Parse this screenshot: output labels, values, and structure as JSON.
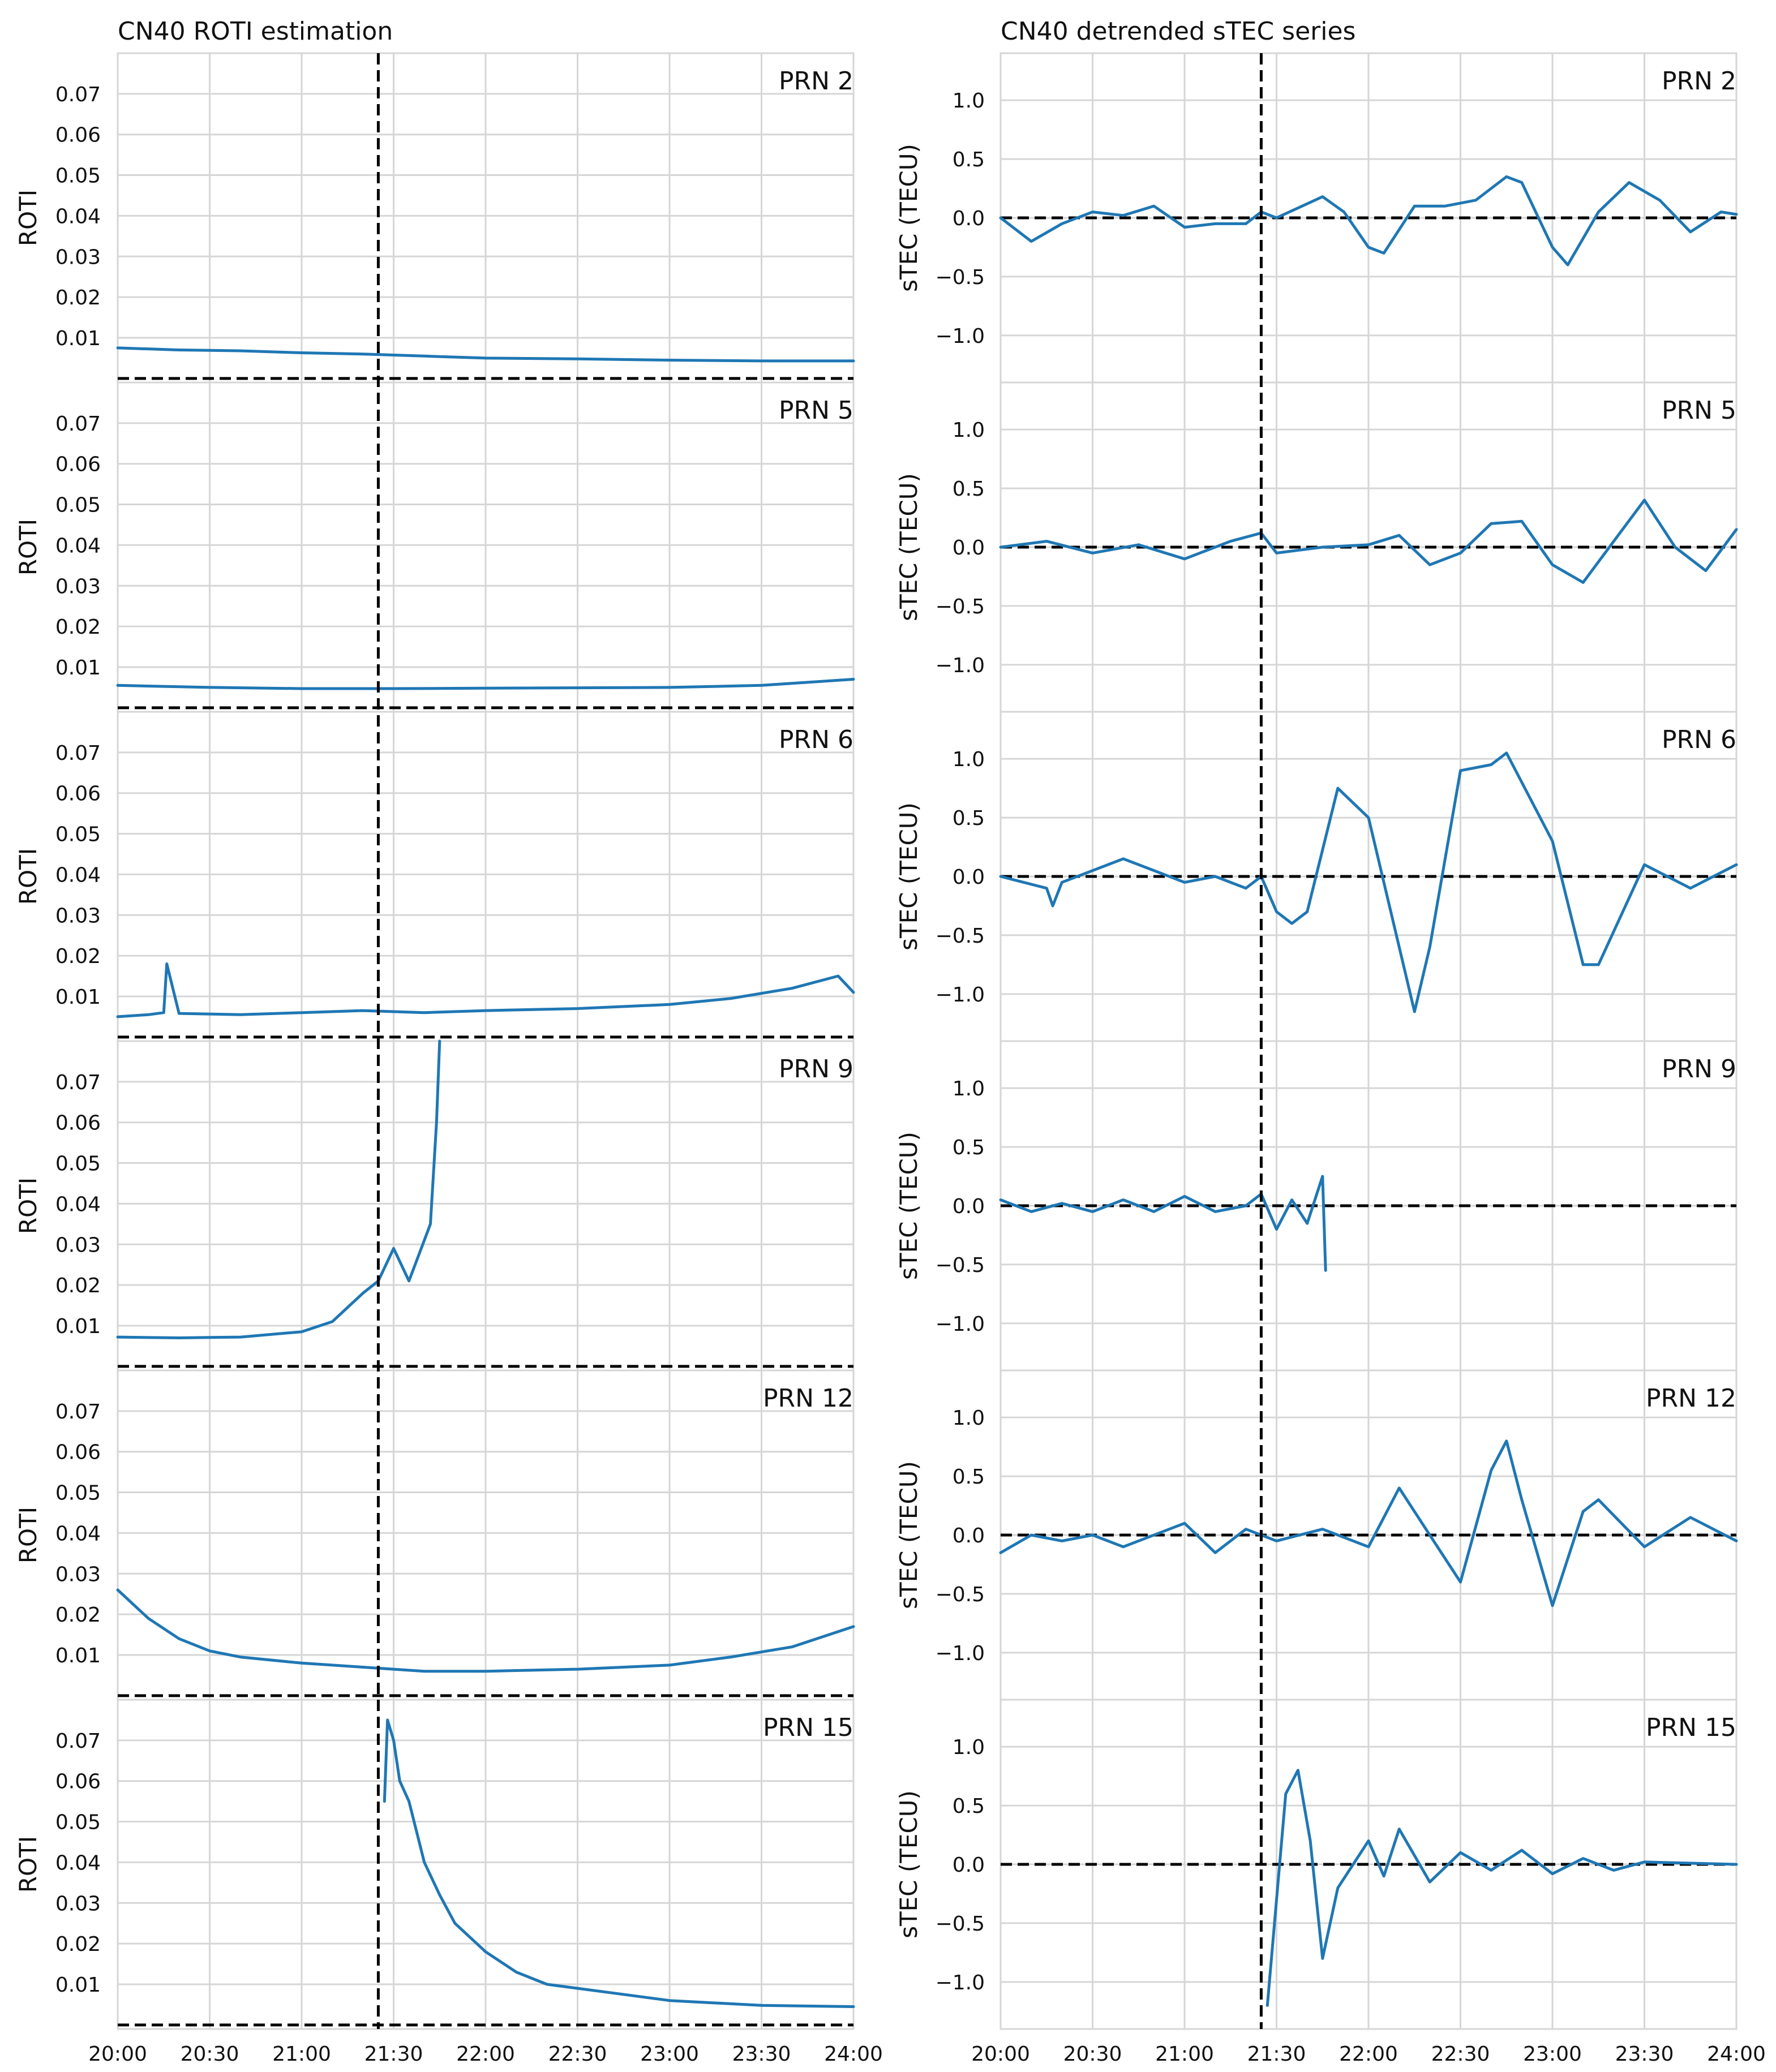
{
  "colors": {
    "series": "#1f77b4",
    "reference": "#000000",
    "grid": "#d6d6d6"
  },
  "chart_data": [
    {
      "type": "line",
      "title": "CN40 ROTI estimation",
      "ylabel": "ROTI",
      "ylim": [
        -0.001,
        0.08
      ],
      "yticks": [
        0.01,
        0.02,
        0.03,
        0.04,
        0.05,
        0.06,
        0.07
      ],
      "ytick_labels": [
        "0.01",
        "0.02",
        "0.03",
        "0.04",
        "0.05",
        "0.06",
        "0.07"
      ],
      "x_range": [
        "20:00",
        "24:00"
      ],
      "xtick_labels": [
        "20:00",
        "20:30",
        "21:00",
        "21:30",
        "22:00",
        "22:30",
        "23:00",
        "23:30",
        "24:00"
      ],
      "reference_time": "21:25",
      "reference_level": 0.0,
      "grid": true,
      "panels": [
        {
          "label": "PRN 2",
          "t": [
            "20:00",
            "20:20",
            "20:40",
            "21:00",
            "21:20",
            "21:40",
            "22:00",
            "22:30",
            "23:00",
            "23:30",
            "24:00"
          ],
          "y": [
            0.0075,
            0.007,
            0.0068,
            0.0063,
            0.006,
            0.0055,
            0.005,
            0.0048,
            0.0045,
            0.0043,
            0.0043
          ]
        },
        {
          "label": "PRN 5",
          "t": [
            "20:00",
            "20:30",
            "21:00",
            "21:30",
            "22:00",
            "22:30",
            "23:00",
            "23:30",
            "24:00"
          ],
          "y": [
            0.0055,
            0.005,
            0.0047,
            0.0047,
            0.0048,
            0.0049,
            0.005,
            0.0055,
            0.007
          ]
        },
        {
          "label": "PRN 6",
          "t": [
            "20:00",
            "20:10",
            "20:15",
            "20:16",
            "20:20",
            "20:40",
            "21:00",
            "21:20",
            "21:40",
            "22:00",
            "22:30",
            "23:00",
            "23:20",
            "23:40",
            "23:55",
            "24:00"
          ],
          "y": [
            0.005,
            0.0055,
            0.006,
            0.018,
            0.0058,
            0.0055,
            0.006,
            0.0065,
            0.006,
            0.0065,
            0.007,
            0.008,
            0.0095,
            0.012,
            0.015,
            0.011
          ]
        },
        {
          "label": "PRN 9",
          "t": [
            "20:00",
            "20:20",
            "20:40",
            "21:00",
            "21:10",
            "21:15",
            "21:20",
            "21:25",
            "21:30",
            "21:35",
            "21:40",
            "21:42",
            "21:44",
            "21:45"
          ],
          "y": [
            0.0072,
            0.007,
            0.0072,
            0.0085,
            0.011,
            0.0145,
            0.018,
            0.021,
            0.029,
            0.021,
            0.031,
            0.035,
            0.06,
            0.08
          ]
        },
        {
          "label": "PRN 12",
          "t": [
            "20:00",
            "20:10",
            "20:20",
            "20:30",
            "20:40",
            "21:00",
            "21:20",
            "21:40",
            "22:00",
            "22:30",
            "23:00",
            "23:20",
            "23:40",
            "24:00"
          ],
          "y": [
            0.026,
            0.019,
            0.014,
            0.011,
            0.0095,
            0.008,
            0.007,
            0.006,
            0.006,
            0.0065,
            0.0075,
            0.0095,
            0.012,
            0.017
          ]
        },
        {
          "label": "PRN 15",
          "t": [
            "21:27",
            "21:28",
            "21:30",
            "21:32",
            "21:35",
            "21:40",
            "21:45",
            "21:50",
            "22:00",
            "22:10",
            "22:20",
            "22:40",
            "23:00",
            "23:30",
            "24:00"
          ],
          "y": [
            0.055,
            0.075,
            0.07,
            0.06,
            0.055,
            0.04,
            0.032,
            0.025,
            0.018,
            0.013,
            0.01,
            0.008,
            0.006,
            0.0048,
            0.0045
          ]
        }
      ]
    },
    {
      "type": "line",
      "title": "CN40 detrended sTEC series",
      "ylabel": "sTEC (TECU)",
      "ylim": [
        -1.4,
        1.4
      ],
      "yticks": [
        -1.0,
        -0.5,
        0.0,
        0.5,
        1.0
      ],
      "ytick_labels": [
        "−1.0",
        "−0.5",
        "0.0",
        "0.5",
        "1.0"
      ],
      "x_range": [
        "20:00",
        "24:00"
      ],
      "xtick_labels": [
        "20:00",
        "20:30",
        "21:00",
        "21:30",
        "22:00",
        "22:30",
        "23:00",
        "23:30",
        "24:00"
      ],
      "reference_time": "21:25",
      "reference_level": 0.0,
      "grid": true,
      "panels": [
        {
          "label": "PRN 2",
          "t": [
            "20:00",
            "20:10",
            "20:20",
            "20:30",
            "20:40",
            "20:50",
            "21:00",
            "21:10",
            "21:20",
            "21:25",
            "21:30",
            "21:45",
            "21:52",
            "22:00",
            "22:05",
            "22:15",
            "22:25",
            "22:35",
            "22:45",
            "22:50",
            "23:00",
            "23:05",
            "23:15",
            "23:25",
            "23:35",
            "23:45",
            "23:55",
            "24:00"
          ],
          "y": [
            0.0,
            -0.2,
            -0.05,
            0.05,
            0.02,
            0.1,
            -0.08,
            -0.05,
            -0.05,
            0.05,
            0.0,
            0.18,
            0.05,
            -0.25,
            -0.3,
            0.1,
            0.1,
            0.15,
            0.35,
            0.3,
            -0.25,
            -0.4,
            0.05,
            0.3,
            0.15,
            -0.12,
            0.05,
            0.03
          ]
        },
        {
          "label": "PRN 5",
          "t": [
            "20:00",
            "20:15",
            "20:30",
            "20:45",
            "21:00",
            "21:15",
            "21:25",
            "21:30",
            "21:45",
            "22:00",
            "22:10",
            "22:20",
            "22:30",
            "22:40",
            "22:50",
            "23:00",
            "23:10",
            "23:20",
            "23:30",
            "23:40",
            "23:50",
            "24:00"
          ],
          "y": [
            0.0,
            0.05,
            -0.05,
            0.02,
            -0.1,
            0.05,
            0.12,
            -0.05,
            0.0,
            0.02,
            0.1,
            -0.15,
            -0.05,
            0.2,
            0.22,
            -0.15,
            -0.3,
            0.05,
            0.4,
            0.0,
            -0.2,
            0.15
          ]
        },
        {
          "label": "PRN 6",
          "t": [
            "20:00",
            "20:15",
            "20:17",
            "20:20",
            "20:40",
            "21:00",
            "21:10",
            "21:20",
            "21:25",
            "21:30",
            "21:35",
            "21:40",
            "21:50",
            "22:00",
            "22:10",
            "22:15",
            "22:20",
            "22:30",
            "22:40",
            "22:45",
            "23:00",
            "23:10",
            "23:15",
            "23:30",
            "23:45",
            "24:00"
          ],
          "y": [
            0.0,
            -0.1,
            -0.25,
            -0.05,
            0.15,
            -0.05,
            0.0,
            -0.1,
            0.0,
            -0.3,
            -0.4,
            -0.3,
            0.75,
            0.5,
            -0.6,
            -1.15,
            -0.6,
            0.9,
            0.95,
            1.05,
            0.3,
            -0.75,
            -0.75,
            0.1,
            -0.1,
            0.1
          ]
        },
        {
          "label": "PRN 9",
          "t": [
            "20:00",
            "20:10",
            "20:20",
            "20:30",
            "20:40",
            "20:50",
            "21:00",
            "21:10",
            "21:20",
            "21:25",
            "21:30",
            "21:35",
            "21:40",
            "21:45",
            "21:46"
          ],
          "y": [
            0.05,
            -0.05,
            0.02,
            -0.05,
            0.05,
            -0.05,
            0.08,
            -0.05,
            0.0,
            0.1,
            -0.2,
            0.05,
            -0.15,
            0.25,
            -0.55
          ]
        },
        {
          "label": "PRN 12",
          "t": [
            "20:00",
            "20:10",
            "20:20",
            "20:30",
            "20:40",
            "21:00",
            "21:10",
            "21:20",
            "21:30",
            "21:45",
            "22:00",
            "22:10",
            "22:20",
            "22:30",
            "22:40",
            "22:45",
            "22:50",
            "23:00",
            "23:10",
            "23:15",
            "23:30",
            "23:45",
            "24:00"
          ],
          "y": [
            -0.15,
            0.0,
            -0.05,
            0.0,
            -0.1,
            0.1,
            -0.15,
            0.05,
            -0.05,
            0.05,
            -0.1,
            0.4,
            0.0,
            -0.4,
            0.55,
            0.8,
            0.3,
            -0.6,
            0.2,
            0.3,
            -0.1,
            0.15,
            -0.05
          ]
        },
        {
          "label": "PRN 15",
          "t": [
            "21:27",
            "21:30",
            "21:33",
            "21:37",
            "21:41",
            "21:45",
            "21:50",
            "22:00",
            "22:05",
            "22:10",
            "22:20",
            "22:30",
            "22:40",
            "22:50",
            "23:00",
            "23:10",
            "23:20",
            "23:30",
            "24:00"
          ],
          "y": [
            -1.2,
            -0.3,
            0.6,
            0.8,
            0.2,
            -0.8,
            -0.2,
            0.2,
            -0.1,
            0.3,
            -0.15,
            0.1,
            -0.05,
            0.12,
            -0.08,
            0.05,
            -0.05,
            0.02,
            0.0
          ]
        }
      ]
    }
  ]
}
